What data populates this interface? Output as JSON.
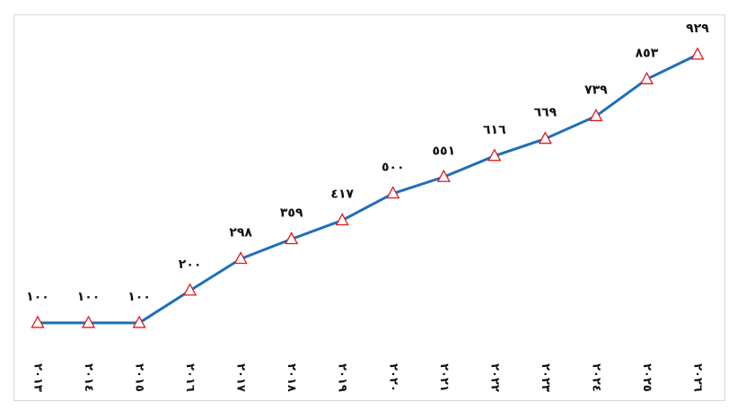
{
  "chart_data": {
    "type": "line",
    "categories": [
      "٢٠١٣",
      "٢٠١٤",
      "٢٠١٥",
      "٢٠١٦",
      "٢٠١٧",
      "٢٠١٨",
      "٢٠١٩",
      "٢٠٢٠",
      "٢٠٢١",
      "٢٠٢٢",
      "٢٠٢٣",
      "٢٠٢٤",
      "٢٠٢٥",
      "٢٠٢٦"
    ],
    "values": [
      100,
      100,
      100,
      200,
      298,
      359,
      417,
      500,
      551,
      616,
      669,
      739,
      853,
      929
    ],
    "value_labels": [
      "١٠٠",
      "١٠٠",
      "١٠٠",
      "٢٠٠",
      "٢٩٨",
      "٣٥٩",
      "٤١٧",
      "٥٠٠",
      "٥٥١",
      "٦١٦",
      "٦٦٩",
      "٧٣٩",
      "٨٥٣",
      "٩٢٩"
    ],
    "color": "#1f6fb8",
    "marker_color": "#e0191e",
    "ylim": [
      0,
      1000
    ]
  }
}
